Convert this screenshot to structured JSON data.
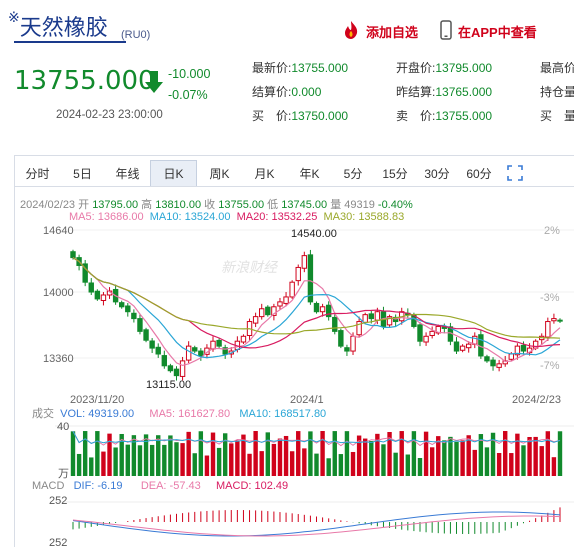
{
  "header": {
    "symbol_mark": "※",
    "name": "天然橡胶",
    "code": "(RU0)",
    "add_watchlist": "添加自选",
    "open_in_app": "在APP中查看"
  },
  "quote": {
    "price": "13755.000",
    "change": "-10.000",
    "change_pct": "-0.07%",
    "time": "2024-02-23 23:00:00",
    "fields": [
      {
        "label": "最新价:",
        "value": "13755.000"
      },
      {
        "label": "开盘价:",
        "value": "13795.000"
      },
      {
        "label": "最高价",
        "value": ""
      },
      {
        "label": "结算价:",
        "value": "0.000"
      },
      {
        "label": "昨结算:",
        "value": "13765.000"
      },
      {
        "label": "持仓量",
        "value": ""
      },
      {
        "label": "买　价:",
        "value": "13750.000"
      },
      {
        "label": "卖　价:",
        "value": "13755.000"
      },
      {
        "label": "买　量",
        "value": ""
      }
    ]
  },
  "tabs": [
    "分时",
    "5日",
    "年线",
    "日K",
    "周K",
    "月K",
    "年K",
    "5分",
    "15分",
    "30分",
    "60分"
  ],
  "active_tab": "日K",
  "ohlc": {
    "date": "2024/02/23",
    "open_label": "开",
    "open": "13795.00",
    "high_label": "高",
    "high": "13810.00",
    "close_label": "收",
    "close": "13755.00",
    "low_label": "低",
    "low": "13745.00",
    "vol_label": "量",
    "vol": "49319",
    "pct": "-0.40%"
  },
  "ma": {
    "ma5": "MA5: 13686.00",
    "ma10": "MA10: 13524.00",
    "ma20": "MA20: 13532.25",
    "ma30": "MA30: 13588.83"
  },
  "kline": {
    "y_ticks": [
      "14640",
      "14000",
      "13360"
    ],
    "pct_ticks": [
      "2%",
      "-3%",
      "-7%"
    ],
    "x_ticks": [
      "2023/11/20",
      "2024/1",
      "2024/2/23"
    ],
    "high_label": "14540.00",
    "low_label": "13115.00",
    "watermark": "新浪财经",
    "closes": [
      14400,
      14320,
      14150,
      14050,
      13980,
      14020,
      14060,
      13950,
      13900,
      13850,
      13780,
      13650,
      13560,
      13480,
      13420,
      13300,
      13250,
      13200,
      13350,
      13500,
      13450,
      13400,
      13480,
      13550,
      13500,
      13420,
      13450,
      13550,
      13600,
      13750,
      13800,
      13880,
      13820,
      13900,
      13950,
      14000,
      14150,
      14300,
      14420,
      13950,
      13850,
      13900,
      13800,
      13650,
      13500,
      13450,
      13600,
      13750,
      13820,
      13780,
      13850,
      13700,
      13800,
      13750,
      13850,
      13820,
      13700,
      13550,
      13600,
      13650,
      13700,
      13680,
      13550,
      13450,
      13500,
      13520,
      13600,
      13400,
      13350,
      13300,
      13320,
      13350,
      13420,
      13500,
      13450,
      13480,
      13550,
      13600,
      13750,
      13780,
      13755
    ]
  },
  "volume": {
    "label": "成交",
    "vol": "VOL: 49319.00",
    "ma5": "MA5: 161627.80",
    "ma10": "MA10: 168517.80",
    "y_top": "40",
    "unit": "万"
  },
  "macd": {
    "label": "MACD",
    "dif": "DIF: -6.19",
    "dea": "DEA: -57.43",
    "macd": "MACD: 102.49",
    "y_top": "252",
    "y_bottom": "252"
  },
  "colors": {
    "up": "#d0021b",
    "down": "#118a2c",
    "ma5": "#e879a8",
    "ma10": "#2aa6d6",
    "ma20": "#d81b60",
    "ma30": "#9aa82a",
    "brand": "#1a3a8c"
  }
}
